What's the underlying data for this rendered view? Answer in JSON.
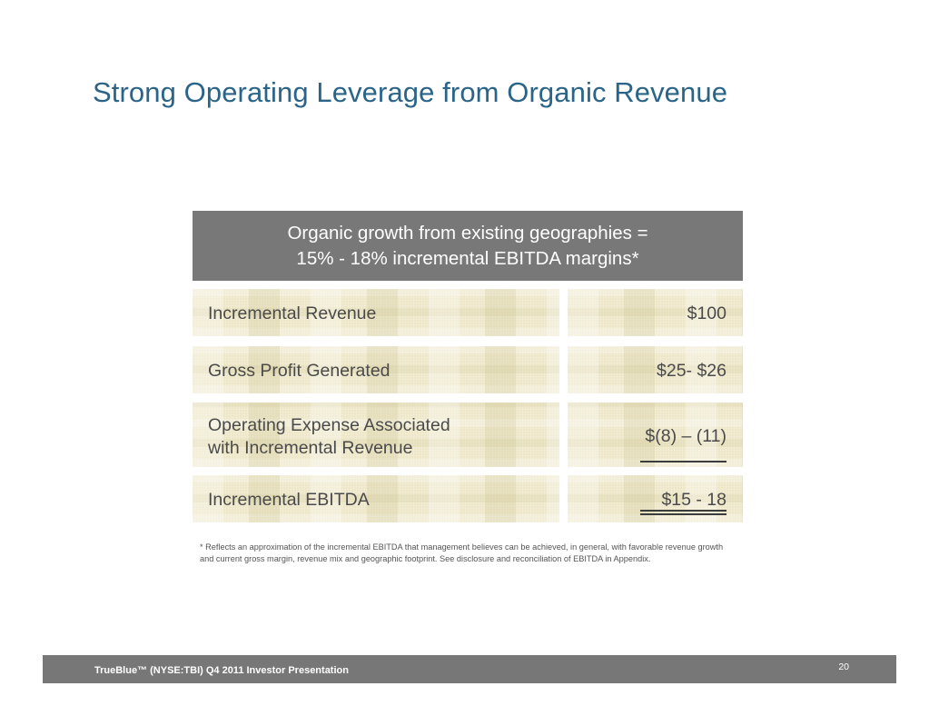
{
  "title": "Strong Operating Leverage from Organic Revenue",
  "header": {
    "line1": "Organic growth from existing geographies =",
    "line2": "15% - 18% incremental EBITDA margins*"
  },
  "rows": [
    {
      "label": "Incremental Revenue",
      "value": "$100"
    },
    {
      "label": "Gross Profit Generated",
      "value": "$25- $26"
    },
    {
      "label_line1": "Operating Expense Associated",
      "label_line2": "with Incremental Revenue",
      "value": "$(8) – (11)"
    },
    {
      "label": "Incremental EBITDA",
      "value": "$15 - 18"
    }
  ],
  "footnote": {
    "line1": "* Reflects an approximation of the incremental EBITDA that management believes can be achieved, in general, with favorable revenue growth",
    "line2": "and current gross margin, revenue mix and geographic footprint. See disclosure and reconciliation of EBITDA in Appendix."
  },
  "footer": {
    "text": "TrueBlue™ (NYSE:TBI) Q4 2011 Investor Presentation",
    "page_number": "20"
  },
  "colors": {
    "title": "#2a6589",
    "header_bg": "#787878",
    "cell_bg": "#ede7c8",
    "footer_bg": "#777777"
  }
}
